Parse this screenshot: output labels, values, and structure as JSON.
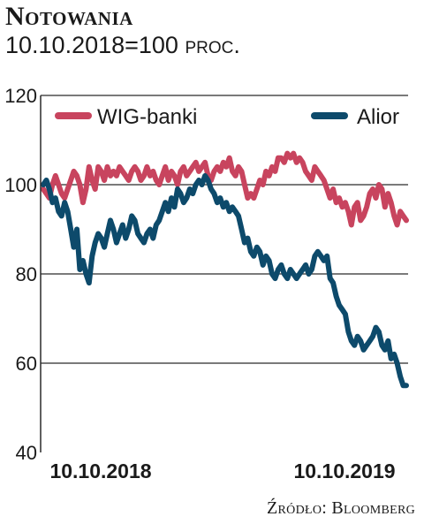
{
  "header": {
    "title": "Notowania",
    "subtitle_main": "10.10.2018=100",
    "subtitle_unit": "proc."
  },
  "source": "Źródło: Bloomberg",
  "colors": {
    "wig_banki": "#c8445e",
    "alior": "#0d4a6b",
    "grid": "#2a2a2a"
  },
  "chart_data": {
    "type": "line",
    "title": "Notowania",
    "subtitle": "10.10.2018=100 proc.",
    "ylim": [
      40,
      120
    ],
    "yticks": [
      40,
      60,
      80,
      100,
      120
    ],
    "xtick_labels": [
      "10.10.2018",
      "10.10.2019"
    ],
    "grid": "horizontal",
    "legend_placement": "top",
    "series": [
      {
        "name": "WIG-banki",
        "color": "#c8445e",
        "values": [
          99,
          98,
          97,
          100,
          102,
          100,
          98,
          97,
          99,
          101,
          103,
          102,
          100,
          96,
          99,
          104,
          101,
          99,
          104,
          103,
          101,
          104,
          102,
          103,
          102,
          104,
          103,
          102,
          101,
          103,
          104,
          103,
          101,
          102,
          104,
          102,
          103,
          101,
          100,
          102,
          104,
          101,
          103,
          102,
          100,
          103,
          104,
          102,
          103,
          104,
          105,
          103,
          104,
          105,
          102,
          101,
          103,
          104,
          103,
          105,
          104,
          106,
          103,
          102,
          104,
          103,
          100,
          97,
          98,
          97,
          99,
          101,
          100,
          103,
          102,
          104,
          103,
          106,
          106,
          105,
          107,
          106,
          107,
          105,
          106,
          105,
          103,
          102,
          101,
          104,
          103,
          102,
          101,
          99,
          97,
          99,
          96,
          97,
          95,
          96,
          94,
          91,
          95,
          96,
          92,
          93,
          95,
          98,
          99,
          97,
          100,
          99,
          95,
          98,
          96,
          93,
          91,
          94,
          93,
          92
        ]
      },
      {
        "name": "Alior",
        "color": "#0d4a6b",
        "values": [
          100,
          101,
          99,
          96,
          97,
          94,
          93,
          96,
          94,
          90,
          86,
          90,
          81,
          83,
          80,
          78,
          84,
          87,
          89,
          88,
          86,
          89,
          92,
          90,
          87,
          89,
          91,
          88,
          90,
          93,
          92,
          89,
          88,
          87,
          89,
          90,
          88,
          91,
          92,
          94,
          96,
          94,
          97,
          95,
          99,
          98,
          96,
          97,
          99,
          98,
          100,
          101,
          100,
          102,
          101,
          99,
          98,
          96,
          97,
          95,
          96,
          94,
          95,
          94,
          93,
          90,
          87,
          88,
          85,
          84,
          86,
          85,
          82,
          84,
          83,
          80,
          79,
          81,
          82,
          80,
          79,
          81,
          80,
          79,
          80,
          81,
          82,
          80,
          81,
          84,
          85,
          84,
          83,
          84,
          79,
          78,
          75,
          73,
          72,
          71,
          67,
          65,
          64,
          66,
          65,
          63,
          64,
          65,
          66,
          68,
          67,
          64,
          63,
          65,
          61,
          62,
          60,
          57,
          55,
          55
        ]
      }
    ]
  }
}
